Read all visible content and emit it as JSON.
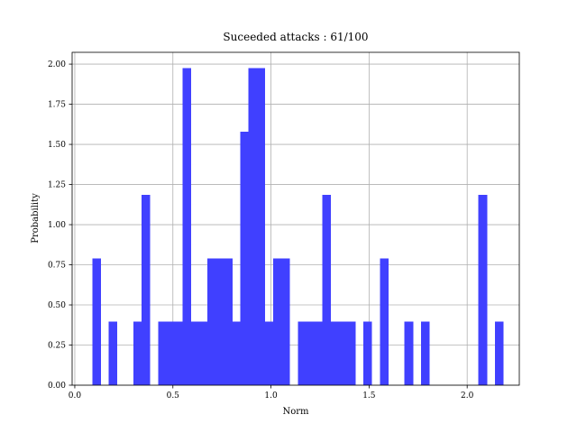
{
  "chart_data": {
    "type": "bar",
    "title": "Suceeded attacks : 61/100",
    "xlabel": "Norm",
    "ylabel": "Probability",
    "xlim": [
      -0.0136,
      2.2657
    ],
    "ylim": [
      0,
      2.0735
    ],
    "xticks": [
      "0.0",
      "0.5",
      "1.0",
      "1.5",
      "2.0"
    ],
    "xtick_values": [
      0,
      0.5,
      1.0,
      1.5,
      2.0
    ],
    "yticks": [
      "0.00",
      "0.25",
      "0.50",
      "0.75",
      "1.00",
      "1.25",
      "1.50",
      "1.75",
      "2.00"
    ],
    "ytick_values": [
      0,
      0.25,
      0.5,
      0.75,
      1.0,
      1.25,
      1.5,
      1.75,
      2.0
    ],
    "grid": true,
    "bar_color": "#4040ff",
    "bin_width": 0.0419,
    "bins": [
      {
        "x": 0.0897,
        "y": 0.79
      },
      {
        "x": 0.1734,
        "y": 0.395
      },
      {
        "x": 0.2991,
        "y": 0.395
      },
      {
        "x": 0.3409,
        "y": 1.185
      },
      {
        "x": 0.4247,
        "y": 0.395
      },
      {
        "x": 0.4666,
        "y": 0.395
      },
      {
        "x": 0.5085,
        "y": 0.395
      },
      {
        "x": 0.5503,
        "y": 1.975
      },
      {
        "x": 0.5922,
        "y": 0.395
      },
      {
        "x": 0.6341,
        "y": 0.395
      },
      {
        "x": 0.676,
        "y": 0.79
      },
      {
        "x": 0.7178,
        "y": 0.79
      },
      {
        "x": 0.7597,
        "y": 0.79
      },
      {
        "x": 0.8016,
        "y": 0.395
      },
      {
        "x": 0.8434,
        "y": 1.58
      },
      {
        "x": 0.8853,
        "y": 1.975
      },
      {
        "x": 0.9272,
        "y": 1.975
      },
      {
        "x": 0.969,
        "y": 0.395
      },
      {
        "x": 1.0109,
        "y": 0.79
      },
      {
        "x": 1.0528,
        "y": 0.79
      },
      {
        "x": 1.1365,
        "y": 0.395
      },
      {
        "x": 1.1784,
        "y": 0.395
      },
      {
        "x": 1.2203,
        "y": 0.395
      },
      {
        "x": 1.2621,
        "y": 1.185
      },
      {
        "x": 1.304,
        "y": 0.395
      },
      {
        "x": 1.3459,
        "y": 0.395
      },
      {
        "x": 1.3878,
        "y": 0.395
      },
      {
        "x": 1.4715,
        "y": 0.395
      },
      {
        "x": 1.5552,
        "y": 0.79
      },
      {
        "x": 1.6809,
        "y": 0.395
      },
      {
        "x": 1.7646,
        "y": 0.395
      },
      {
        "x": 2.0577,
        "y": 1.185
      },
      {
        "x": 2.1414,
        "y": 0.395
      }
    ]
  }
}
